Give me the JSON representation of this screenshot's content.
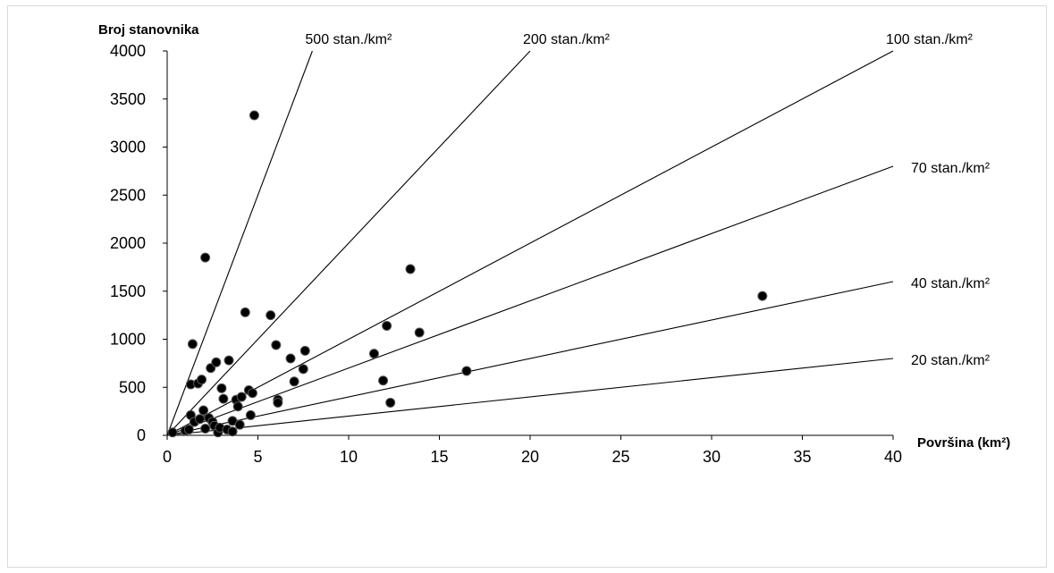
{
  "chart_data": {
    "type": "scatter",
    "xlabel": "Površina (km²)",
    "ylabel": "Broj stanovnika",
    "xlim": [
      0,
      40
    ],
    "ylim": [
      0,
      4000
    ],
    "x_ticks": [
      "0",
      "5",
      "10",
      "15",
      "20",
      "25",
      "30",
      "35",
      "40"
    ],
    "y_ticks": [
      "0",
      "500",
      "1000",
      "1500",
      "2000",
      "2500",
      "3000",
      "3500",
      "4000"
    ],
    "grid": false,
    "legend": "none",
    "marker_color": "#000000",
    "points": [
      {
        "x": 0.3,
        "y": 30
      },
      {
        "x": 1.0,
        "y": 50
      },
      {
        "x": 1.2,
        "y": 60
      },
      {
        "x": 1.3,
        "y": 210
      },
      {
        "x": 1.3,
        "y": 530
      },
      {
        "x": 1.4,
        "y": 950
      },
      {
        "x": 1.5,
        "y": 140
      },
      {
        "x": 1.7,
        "y": 540
      },
      {
        "x": 1.8,
        "y": 170
      },
      {
        "x": 1.9,
        "y": 580
      },
      {
        "x": 2.0,
        "y": 260
      },
      {
        "x": 2.1,
        "y": 1850
      },
      {
        "x": 2.1,
        "y": 70
      },
      {
        "x": 2.3,
        "y": 180
      },
      {
        "x": 2.4,
        "y": 700
      },
      {
        "x": 2.5,
        "y": 140
      },
      {
        "x": 2.6,
        "y": 100
      },
      {
        "x": 2.7,
        "y": 760
      },
      {
        "x": 2.8,
        "y": 30
      },
      {
        "x": 2.9,
        "y": 80
      },
      {
        "x": 3.0,
        "y": 490
      },
      {
        "x": 3.1,
        "y": 380
      },
      {
        "x": 3.3,
        "y": 60
      },
      {
        "x": 3.4,
        "y": 780
      },
      {
        "x": 3.6,
        "y": 150
      },
      {
        "x": 3.6,
        "y": 40
      },
      {
        "x": 3.8,
        "y": 370
      },
      {
        "x": 3.9,
        "y": 300
      },
      {
        "x": 4.0,
        "y": 110
      },
      {
        "x": 4.1,
        "y": 400
      },
      {
        "x": 4.3,
        "y": 1280
      },
      {
        "x": 4.5,
        "y": 470
      },
      {
        "x": 4.6,
        "y": 210
      },
      {
        "x": 4.7,
        "y": 440
      },
      {
        "x": 4.8,
        "y": 3330
      },
      {
        "x": 5.7,
        "y": 1250
      },
      {
        "x": 6.0,
        "y": 940
      },
      {
        "x": 6.1,
        "y": 370
      },
      {
        "x": 6.1,
        "y": 340
      },
      {
        "x": 6.8,
        "y": 800
      },
      {
        "x": 7.0,
        "y": 560
      },
      {
        "x": 7.5,
        "y": 690
      },
      {
        "x": 7.6,
        "y": 880
      },
      {
        "x": 11.4,
        "y": 850
      },
      {
        "x": 11.9,
        "y": 570
      },
      {
        "x": 12.1,
        "y": 1140
      },
      {
        "x": 12.3,
        "y": 340
      },
      {
        "x": 13.4,
        "y": 1730
      },
      {
        "x": 13.9,
        "y": 1070
      },
      {
        "x": 16.5,
        "y": 670
      },
      {
        "x": 32.8,
        "y": 1450
      }
    ],
    "reference_lines": [
      {
        "label": "500 stan./km²",
        "density": 500
      },
      {
        "label": "200 stan./km²",
        "density": 200
      },
      {
        "label": "100 stan./km²",
        "density": 100
      },
      {
        "label": "70 stan./km²",
        "density": 70
      },
      {
        "label": "40 stan./km²",
        "density": 40
      },
      {
        "label": "20 stan./km²",
        "density": 20
      }
    ],
    "reference_line_color": "#000000"
  }
}
